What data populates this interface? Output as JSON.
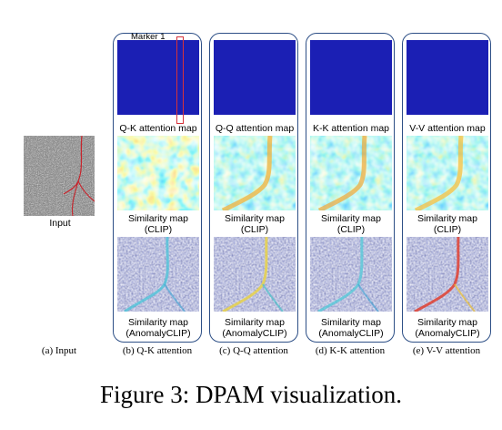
{
  "figure": {
    "caption": "Figure 3: DPAM visualization.",
    "input_label": "Input",
    "marker_label": "Marker 1",
    "columns": [
      {
        "attention_label": "Q-K attention map",
        "clip_label_line1": "Similarity map",
        "clip_label_line2": "(CLIP)",
        "anomaly_label_line1": "Similarity map",
        "anomaly_label_line2": "(AnomalyCLIP)",
        "subcaption": "(b) Q-K attention"
      },
      {
        "attention_label": "Q-Q attention map",
        "clip_label_line1": "Similarity map",
        "clip_label_line2": "(CLIP)",
        "anomaly_label_line1": "Similarity map",
        "anomaly_label_line2": "(AnomalyCLIP)",
        "subcaption": "(c) Q-Q attention"
      },
      {
        "attention_label": "K-K attention map",
        "clip_label_line1": "Similarity map",
        "clip_label_line2": "(CLIP)",
        "anomaly_label_line1": "Similarity map",
        "anomaly_label_line2": "(AnomalyCLIP)",
        "subcaption": "(d) K-K attention"
      },
      {
        "attention_label": "V-V attention map",
        "clip_label_line1": "Similarity map",
        "clip_label_line2": "(CLIP)",
        "anomaly_label_line1": "Similarity map",
        "anomaly_label_line2": "(AnomalyCLIP)",
        "subcaption": "(e) V-V attention"
      }
    ],
    "input_subcaption": "(a) Input"
  },
  "colors": {
    "frame": "#2d4f86",
    "attention_blue": "#1b1fb4",
    "marker": "#d6323a",
    "crack": "#c8242c"
  }
}
